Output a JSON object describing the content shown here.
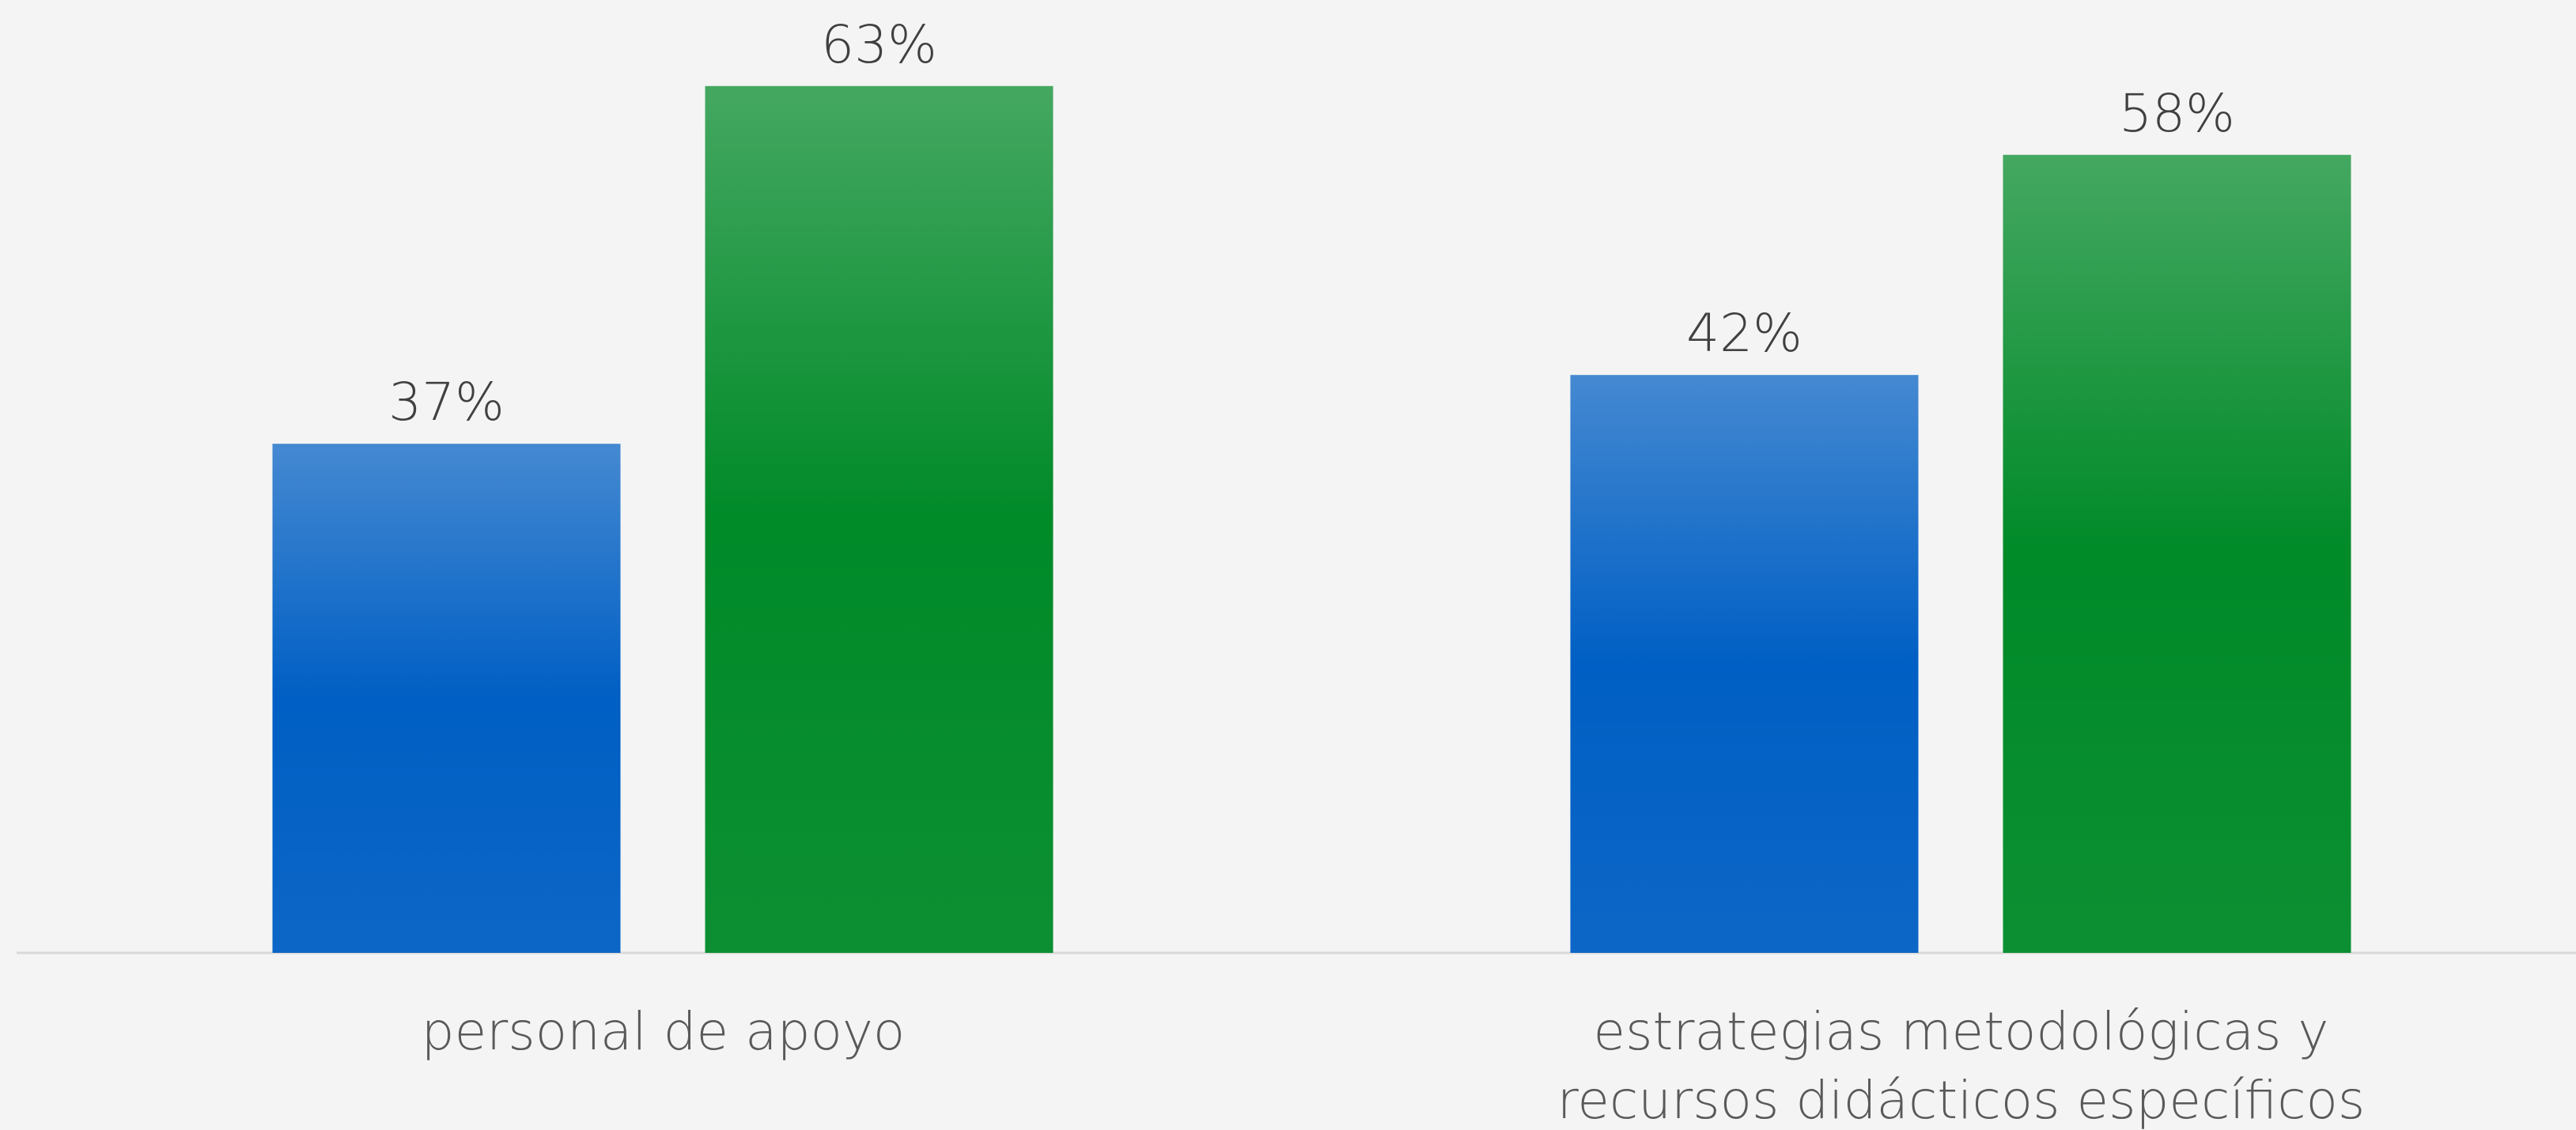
{
  "chart_data": {
    "type": "bar",
    "categories": [
      "personal de apoyo",
      "estrategias metodológicas y recursos didácticos específicos"
    ],
    "series": [
      {
        "color": "#005fc4",
        "values": [
          37,
          42
        ],
        "value_labels": [
          "37%",
          "42%"
        ]
      },
      {
        "color": "#008a28",
        "values": [
          63,
          58
        ],
        "value_labels": [
          "63%",
          "58%"
        ]
      }
    ]
  }
}
